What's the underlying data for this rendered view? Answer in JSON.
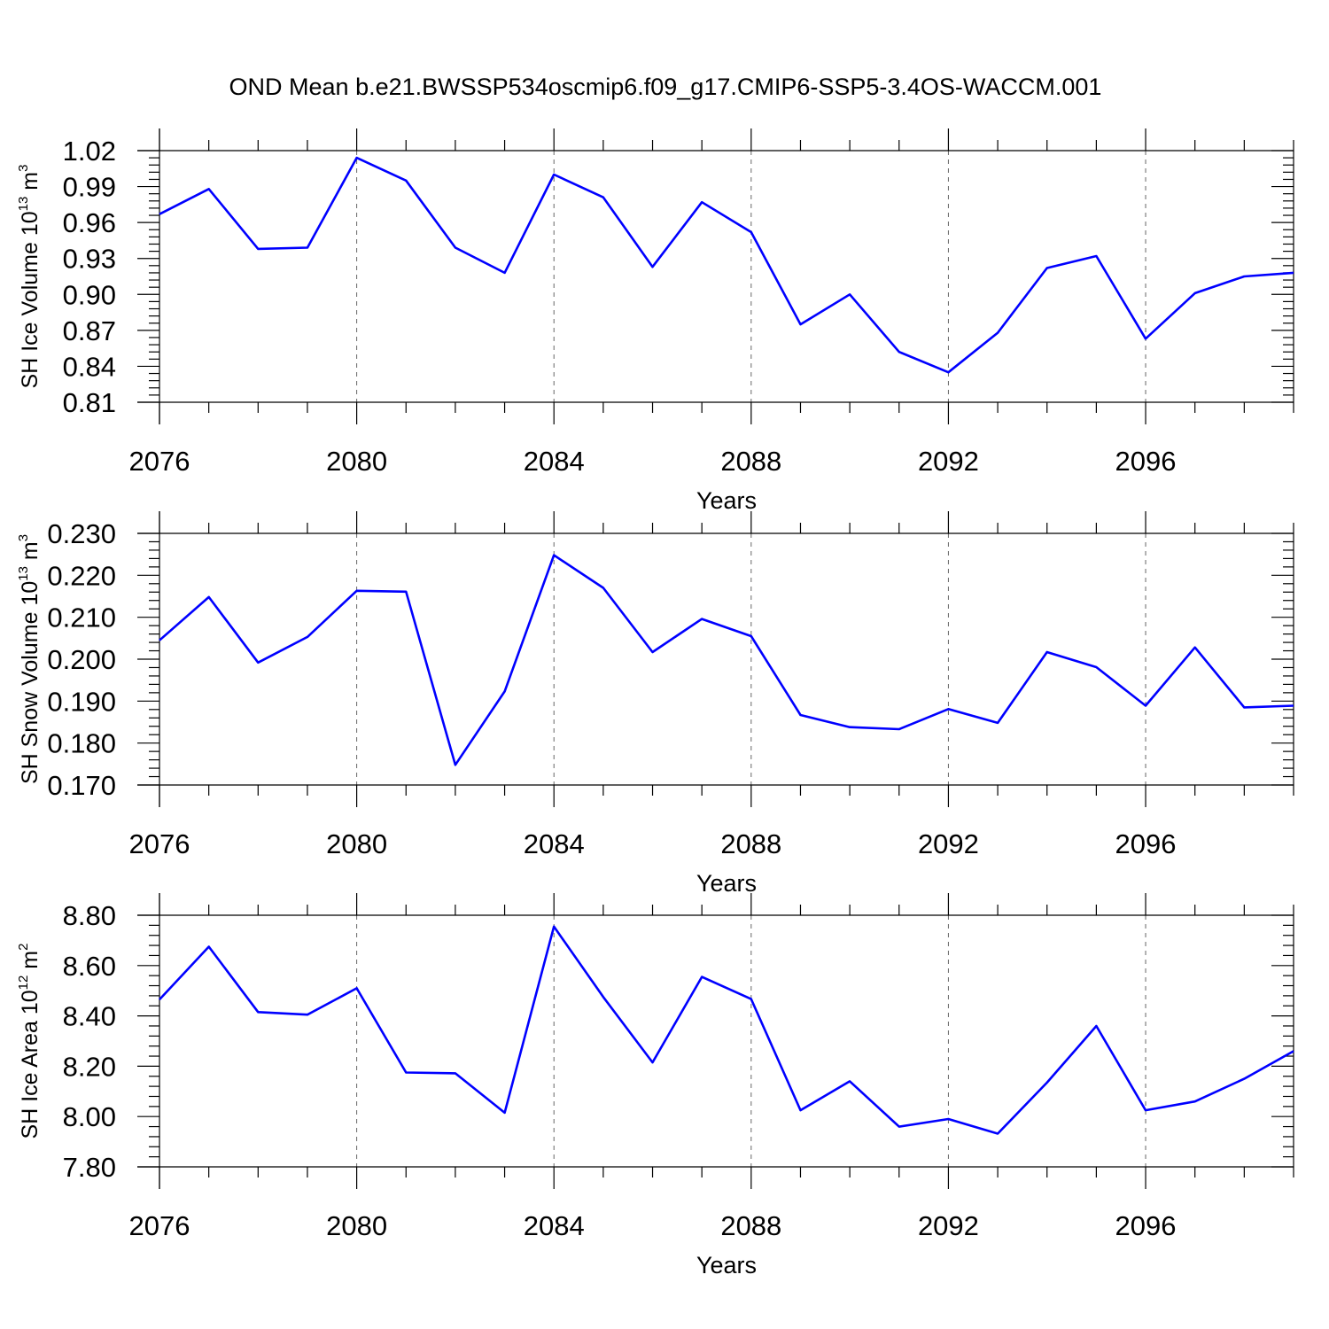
{
  "figure": {
    "title": "OND Mean b.e21.BWSSP534oscmip6.f09_g17.CMIP6-SSP5-3.4OS-WACCM.001"
  },
  "colors": {
    "line": "#0000ff",
    "grid": "#666666",
    "axis": "#000000"
  },
  "chart_data": [
    {
      "type": "line",
      "ylabel": {
        "main": "SH Ice Volume 10",
        "sup": "13",
        "unit": " m",
        "unit_sup": "3"
      },
      "xlabel": "Years",
      "xlim": [
        2076,
        2099
      ],
      "ylim": [
        0.81,
        1.02
      ],
      "xticks": [
        2076,
        2080,
        2084,
        2088,
        2092,
        2096
      ],
      "xtick_labels": [
        "2076",
        "2080",
        "2084",
        "2088",
        "2092",
        "2096"
      ],
      "yticks": [
        0.81,
        0.84,
        0.87,
        0.9,
        0.93,
        0.96,
        0.99,
        1.02
      ],
      "ytick_labels": [
        "0.81",
        "0.84",
        "0.87",
        "0.90",
        "0.93",
        "0.96",
        "0.99",
        "1.02"
      ],
      "yminor_step": 0.006,
      "grid": "vertical dashed at major x ticks",
      "series": [
        {
          "x": [
            2076,
            2077,
            2078,
            2079,
            2080,
            2081,
            2082,
            2083,
            2084,
            2085,
            2086,
            2087,
            2088,
            2089,
            2090,
            2091,
            2092,
            2093,
            2094,
            2095,
            2096,
            2097,
            2098,
            2099
          ],
          "values": [
            0.967,
            0.988,
            0.938,
            0.939,
            1.014,
            0.995,
            0.939,
            0.918,
            1.0,
            0.981,
            0.923,
            0.977,
            0.952,
            0.875,
            0.9,
            0.852,
            0.835,
            0.868,
            0.922,
            0.932,
            0.863,
            0.901,
            0.915,
            0.918
          ]
        }
      ]
    },
    {
      "type": "line",
      "ylabel": {
        "main": "SH Snow Volume 10",
        "sup": "13",
        "unit": " m",
        "unit_sup": "3"
      },
      "xlabel": "Years",
      "xlim": [
        2076,
        2099
      ],
      "ylim": [
        0.17,
        0.23
      ],
      "xticks": [
        2076,
        2080,
        2084,
        2088,
        2092,
        2096
      ],
      "xtick_labels": [
        "2076",
        "2080",
        "2084",
        "2088",
        "2092",
        "2096"
      ],
      "yticks": [
        0.17,
        0.18,
        0.19,
        0.2,
        0.21,
        0.22,
        0.23
      ],
      "ytick_labels": [
        "0.170",
        "0.180",
        "0.190",
        "0.200",
        "0.210",
        "0.220",
        "0.230"
      ],
      "yminor_step": 0.002,
      "grid": "vertical dashed at major x ticks",
      "series": [
        {
          "x": [
            2076,
            2077,
            2078,
            2079,
            2080,
            2081,
            2082,
            2083,
            2084,
            2085,
            2086,
            2087,
            2088,
            2089,
            2090,
            2091,
            2092,
            2093,
            2094,
            2095,
            2096,
            2097,
            2098,
            2099
          ],
          "values": [
            0.2045,
            0.2148,
            0.1992,
            0.2053,
            0.2163,
            0.2161,
            0.1748,
            0.1923,
            0.2248,
            0.217,
            0.2017,
            0.2096,
            0.2055,
            0.1867,
            0.1838,
            0.1833,
            0.1881,
            0.1848,
            0.2017,
            0.1981,
            0.1889,
            0.2028,
            0.1885,
            0.1889
          ]
        }
      ]
    },
    {
      "type": "line",
      "ylabel": {
        "main": "SH Ice Area 10",
        "sup": "12",
        "unit": " m",
        "unit_sup": "2"
      },
      "xlabel": "Years",
      "xlim": [
        2076,
        2099
      ],
      "ylim": [
        7.8,
        8.8
      ],
      "xticks": [
        2076,
        2080,
        2084,
        2088,
        2092,
        2096
      ],
      "xtick_labels": [
        "2076",
        "2080",
        "2084",
        "2088",
        "2092",
        "2096"
      ],
      "yticks": [
        7.8,
        8.0,
        8.2,
        8.4,
        8.6,
        8.8
      ],
      "ytick_labels": [
        "7.80",
        "8.00",
        "8.20",
        "8.40",
        "8.60",
        "8.80"
      ],
      "yminor_step": 0.04,
      "grid": "vertical dashed at major x ticks",
      "series": [
        {
          "x": [
            2076,
            2077,
            2078,
            2079,
            2080,
            2081,
            2082,
            2083,
            2084,
            2085,
            2086,
            2087,
            2088,
            2089,
            2090,
            2091,
            2092,
            2093,
            2094,
            2095,
            2096,
            2097,
            2098,
            2099
          ],
          "values": [
            8.465,
            8.675,
            8.415,
            8.405,
            8.51,
            8.175,
            8.172,
            8.015,
            8.755,
            8.475,
            8.215,
            8.555,
            8.467,
            8.025,
            8.14,
            7.96,
            7.99,
            7.932,
            8.135,
            8.36,
            8.025,
            8.06,
            8.15,
            8.26
          ]
        }
      ]
    }
  ]
}
